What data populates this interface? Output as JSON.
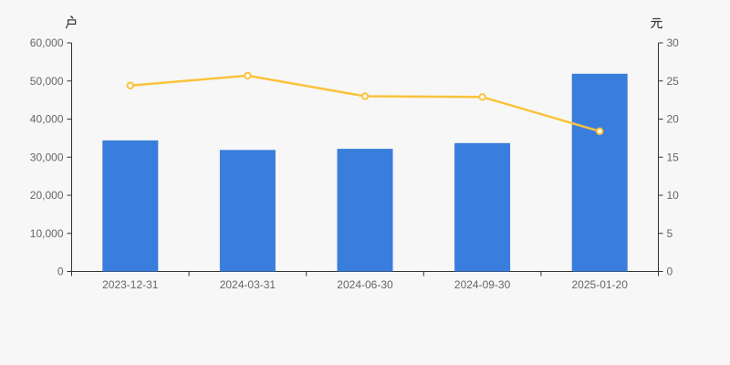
{
  "chart_data": {
    "type": "combo",
    "categories": [
      "2023-12-31",
      "2024-03-31",
      "2024-06-30",
      "2024-09-30",
      "2025-01-20"
    ],
    "series": [
      {
        "id": "bar-series",
        "type": "bar",
        "axis": "left",
        "unit": "户",
        "color": "#3a7edd",
        "values": [
          34400,
          31900,
          32200,
          33700,
          51900
        ]
      },
      {
        "id": "line-series",
        "type": "line",
        "axis": "right",
        "unit": "元",
        "color": "#fac33c",
        "marker": "hollow-circle",
        "values": [
          24.4,
          25.7,
          23.0,
          22.9,
          18.4
        ]
      }
    ],
    "left_axis": {
      "name": "户",
      "min": 0,
      "max": 60000,
      "tick_interval": 10000,
      "tick_labels": [
        "0",
        "10,000",
        "20,000",
        "30,000",
        "40,000",
        "50,000",
        "60,000"
      ]
    },
    "right_axis": {
      "name": "元",
      "min": 0,
      "max": 30,
      "tick_interval": 5,
      "tick_labels": [
        "0",
        "5",
        "10",
        "15",
        "20",
        "25",
        "30"
      ]
    },
    "grid": false,
    "legend": false,
    "title": ""
  },
  "colors": {
    "background": "#f7f7f7",
    "bar": "#3a7edd",
    "line": "#fac33c",
    "axis_line": "#333333",
    "tick_text": "#666666",
    "axis_unit_text": "#3c3c3c",
    "marker_fill": "#ffffff"
  }
}
